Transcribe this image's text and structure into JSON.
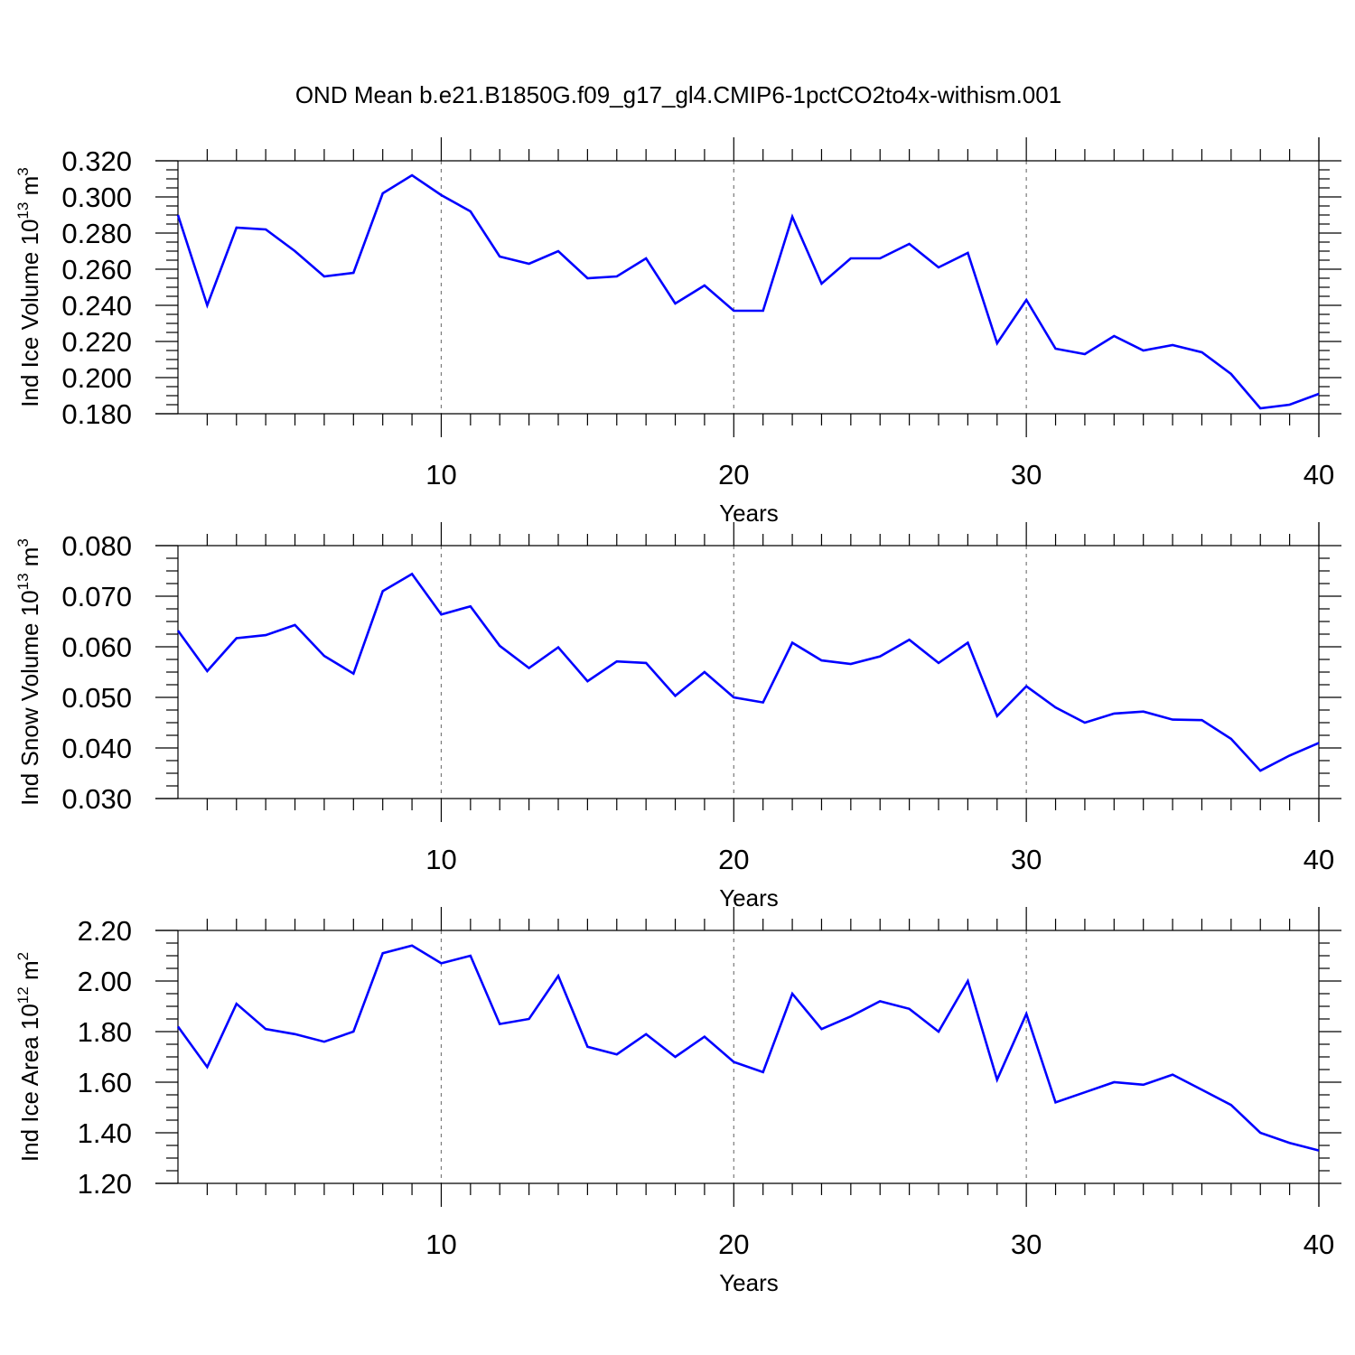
{
  "title": "OND Mean b.e21.B1850G.f09_g17_gl4.CMIP6-1pctCO2to4x-withism.001",
  "colors": {
    "line": "#0000ff",
    "axis": "#000000",
    "grid": "#7a7a7a"
  },
  "chart_data": [
    {
      "type": "line",
      "xlabel": "Years",
      "ylabel": "Ind Ice Volume 10",
      "ylabel_exp": "13",
      "ylabel_unit": " m",
      "ylabel_unit_exp": "3",
      "xlim": [
        1,
        40
      ],
      "ylim": [
        0.18,
        0.32
      ],
      "xticks": [
        "10",
        "20",
        "30",
        "40"
      ],
      "yticks": [
        "0.180",
        "0.200",
        "0.220",
        "0.240",
        "0.260",
        "0.280",
        "0.300",
        "0.320"
      ],
      "grid": "vertical dashed at 10, 20, 30",
      "x": [
        1,
        2,
        3,
        4,
        5,
        6,
        7,
        8,
        9,
        10,
        11,
        12,
        13,
        14,
        15,
        16,
        17,
        18,
        19,
        20,
        21,
        22,
        23,
        24,
        25,
        26,
        27,
        28,
        29,
        30,
        31,
        32,
        33,
        34,
        35,
        36,
        37,
        38,
        39,
        40
      ],
      "values": [
        0.29,
        0.24,
        0.283,
        0.282,
        0.27,
        0.256,
        0.258,
        0.302,
        0.312,
        0.301,
        0.292,
        0.267,
        0.263,
        0.27,
        0.255,
        0.256,
        0.266,
        0.241,
        0.251,
        0.237,
        0.237,
        0.289,
        0.252,
        0.266,
        0.266,
        0.274,
        0.261,
        0.269,
        0.219,
        0.243,
        0.216,
        0.213,
        0.223,
        0.215,
        0.218,
        0.214,
        0.202,
        0.183,
        0.185,
        0.191
      ]
    },
    {
      "type": "line",
      "xlabel": "Years",
      "ylabel": "Ind Snow Volume 10",
      "ylabel_exp": "13",
      "ylabel_unit": " m",
      "ylabel_unit_exp": "3",
      "xlim": [
        1,
        40
      ],
      "ylim": [
        0.03,
        0.08
      ],
      "xticks": [
        "10",
        "20",
        "30",
        "40"
      ],
      "yticks": [
        "0.030",
        "0.040",
        "0.050",
        "0.060",
        "0.070",
        "0.080"
      ],
      "grid": "vertical dashed at 10, 20, 30",
      "x": [
        1,
        2,
        3,
        4,
        5,
        6,
        7,
        8,
        9,
        10,
        11,
        12,
        13,
        14,
        15,
        16,
        17,
        18,
        19,
        20,
        21,
        22,
        23,
        24,
        25,
        26,
        27,
        28,
        29,
        30,
        31,
        32,
        33,
        34,
        35,
        36,
        37,
        38,
        39,
        40
      ],
      "values": [
        0.0632,
        0.0552,
        0.0617,
        0.0623,
        0.0643,
        0.0582,
        0.0547,
        0.071,
        0.0744,
        0.0664,
        0.068,
        0.0602,
        0.0558,
        0.0599,
        0.0532,
        0.0571,
        0.0568,
        0.0503,
        0.055,
        0.05,
        0.049,
        0.0608,
        0.0573,
        0.0566,
        0.0581,
        0.0614,
        0.0568,
        0.0608,
        0.0463,
        0.0522,
        0.048,
        0.045,
        0.0468,
        0.0472,
        0.0456,
        0.0455,
        0.0418,
        0.0355,
        0.0385,
        0.041
      ]
    },
    {
      "type": "line",
      "xlabel": "Years",
      "ylabel": "Ind Ice Area 10",
      "ylabel_exp": "12",
      "ylabel_unit": " m",
      "ylabel_unit_exp": "2",
      "xlim": [
        1,
        40
      ],
      "ylim": [
        1.2,
        2.2
      ],
      "xticks": [
        "10",
        "20",
        "30",
        "40"
      ],
      "yticks": [
        "1.20",
        "1.40",
        "1.60",
        "1.80",
        "2.00",
        "2.20"
      ],
      "grid": "vertical dashed at 10, 20, 30",
      "x": [
        1,
        2,
        3,
        4,
        5,
        6,
        7,
        8,
        9,
        10,
        11,
        12,
        13,
        14,
        15,
        16,
        17,
        18,
        19,
        20,
        21,
        22,
        23,
        24,
        25,
        26,
        27,
        28,
        29,
        30,
        31,
        32,
        33,
        34,
        35,
        36,
        37,
        38,
        39,
        40
      ],
      "values": [
        1.82,
        1.66,
        1.91,
        1.81,
        1.79,
        1.76,
        1.8,
        2.11,
        2.14,
        2.07,
        2.1,
        1.83,
        1.85,
        2.02,
        1.74,
        1.71,
        1.79,
        1.7,
        1.78,
        1.68,
        1.64,
        1.95,
        1.81,
        1.86,
        1.92,
        1.89,
        1.8,
        2.0,
        1.61,
        1.87,
        1.52,
        1.56,
        1.6,
        1.59,
        1.63,
        1.57,
        1.51,
        1.4,
        1.36,
        1.33
      ]
    }
  ]
}
